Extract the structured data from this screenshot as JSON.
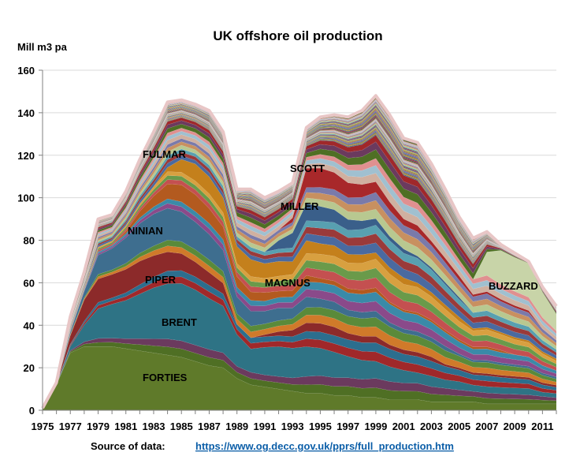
{
  "chart_data": {
    "type": "area",
    "title": "UK offshore oil production",
    "ylabel": "Mill m3 pa",
    "xlabel": "",
    "ylim": [
      0,
      160
    ],
    "yticks": [
      0,
      20,
      40,
      60,
      80,
      100,
      120,
      140,
      160
    ],
    "xlim": [
      1975,
      2012
    ],
    "xticks": [
      1975,
      1977,
      1979,
      1981,
      1983,
      1985,
      1987,
      1989,
      1991,
      1993,
      1995,
      1997,
      1999,
      2001,
      2003,
      2005,
      2007,
      2009,
      2011
    ],
    "grid": true,
    "stacked": true,
    "total": {
      "x": [
        1975,
        1976,
        1977,
        1978,
        1979,
        1980,
        1981,
        1982,
        1983,
        1984,
        1985,
        1986,
        1987,
        1988,
        1989,
        1990,
        1991,
        1992,
        1993,
        1994,
        1995,
        1996,
        1997,
        1998,
        1999,
        2000,
        2001,
        2002,
        2003,
        2004,
        2005,
        2006,
        2007,
        2008,
        2009,
        2010,
        2011,
        2012
      ],
      "values": [
        1,
        13,
        44,
        65,
        90,
        92,
        103,
        118,
        131,
        145,
        146,
        144,
        141,
        131,
        104,
        104,
        100,
        103,
        107,
        133,
        138,
        139,
        138,
        141,
        148,
        139,
        128,
        126,
        116,
        104,
        91,
        81,
        84,
        78,
        74,
        70,
        58,
        49
      ]
    },
    "series": [
      {
        "name": "FORTIES",
        "color": "#5f7a2a",
        "values": [
          1,
          12,
          27,
          30,
          30,
          30,
          29,
          28,
          27,
          26,
          25,
          23,
          21,
          20,
          15,
          12,
          11,
          10,
          9,
          8,
          8,
          7,
          7,
          6,
          6,
          5,
          5,
          5,
          4,
          4,
          4,
          4,
          3,
          3,
          3,
          3,
          3,
          3
        ]
      },
      {
        "name": "BRENT",
        "color": "#2e7385",
        "values": [
          0,
          0,
          2,
          8,
          14,
          16,
          18,
          21,
          24,
          26,
          27,
          26,
          24,
          22,
          15,
          11,
          13,
          14,
          14,
          14,
          13,
          12,
          10,
          9,
          8,
          7,
          6,
          5,
          5,
          4,
          4,
          3,
          3,
          3,
          3,
          3,
          2,
          2
        ]
      },
      {
        "name": "PIPER",
        "color": "#8c2a2a",
        "values": [
          0,
          0,
          4,
          10,
          11,
          11,
          11,
          11,
          10,
          9,
          8,
          7,
          6,
          5,
          0,
          0,
          1,
          2,
          3,
          4,
          4,
          4,
          3,
          3,
          3,
          2,
          2,
          2,
          2,
          1,
          1,
          1,
          1,
          1,
          1,
          1,
          1,
          1
        ]
      },
      {
        "name": "NINIAN",
        "color": "#3e6e8f",
        "values": [
          0,
          0,
          1,
          3,
          9,
          10,
          12,
          14,
          15,
          15,
          14,
          13,
          12,
          10,
          8,
          7,
          6,
          6,
          5,
          5,
          4,
          4,
          3,
          3,
          3,
          2,
          2,
          2,
          2,
          2,
          1,
          1,
          1,
          1,
          1,
          1,
          1,
          1
        ]
      },
      {
        "name": "FULMAR",
        "color": "#b35a1f",
        "values": [
          0,
          0,
          0,
          0,
          0,
          0,
          1,
          3,
          5,
          7,
          8,
          8,
          7,
          6,
          5,
          4,
          4,
          3,
          3,
          3,
          2,
          2,
          2,
          2,
          2,
          1,
          1,
          1,
          1,
          1,
          1,
          1,
          1,
          1,
          0,
          0,
          0,
          0
        ]
      },
      {
        "name": "MAGNUS",
        "color": "#c4801c",
        "values": [
          0,
          0,
          0,
          0,
          0,
          0,
          0,
          0,
          0,
          2,
          6,
          8,
          8,
          7,
          8,
          8,
          7,
          7,
          6,
          6,
          5,
          5,
          4,
          4,
          3,
          3,
          3,
          2,
          2,
          2,
          2,
          1,
          1,
          1,
          1,
          1,
          1,
          1
        ]
      },
      {
        "name": "MILLER",
        "color": "#3a5f8a",
        "values": [
          0,
          0,
          0,
          0,
          0,
          0,
          0,
          0,
          0,
          0,
          0,
          0,
          0,
          0,
          0,
          0,
          0,
          4,
          7,
          8,
          7,
          6,
          5,
          4,
          3,
          2,
          2,
          1,
          1,
          1,
          1,
          0,
          0,
          0,
          0,
          0,
          0,
          0
        ]
      },
      {
        "name": "SCOTT",
        "color": "#a8282a",
        "values": [
          0,
          0,
          0,
          0,
          0,
          0,
          0,
          0,
          0,
          0,
          0,
          0,
          0,
          0,
          0,
          0,
          0,
          0,
          2,
          9,
          9,
          8,
          7,
          6,
          5,
          4,
          3,
          3,
          2,
          2,
          2,
          1,
          1,
          1,
          1,
          1,
          0,
          0
        ]
      },
      {
        "name": "BUZZARD",
        "color": "#c8d4a8",
        "values": [
          0,
          0,
          0,
          0,
          0,
          0,
          0,
          0,
          0,
          0,
          0,
          0,
          0,
          0,
          0,
          0,
          0,
          0,
          0,
          0,
          0,
          0,
          0,
          0,
          0,
          0,
          0,
          0,
          0,
          0,
          0,
          0,
          11,
          16,
          16,
          16,
          12,
          8
        ]
      }
    ],
    "annotations": [
      "FORTIES",
      "BRENT",
      "PIPER",
      "NINIAN",
      "FULMAR",
      "MAGNUS",
      "MILLER",
      "SCOTT",
      "BUZZARD"
    ],
    "source_label": "Source of data:",
    "source_url": "https://www.og.decc.gov.uk/pprs/full_production.htm"
  },
  "colors": {
    "other_fields": [
      "#4f6f24",
      "#6b3a5e",
      "#a0282a",
      "#2c6e8e",
      "#d07a2a",
      "#5a8a3a",
      "#8a4a8a",
      "#3a8aa8",
      "#c45050",
      "#6a9a4a",
      "#d8a040",
      "#4a6aa0",
      "#9a3a3a",
      "#58a0b0",
      "#b8c890",
      "#c89060",
      "#7a7aaa",
      "#d0b0a0",
      "#a0c0d0",
      "#e09090"
    ],
    "outline": "#e8c6c6",
    "grid": "#d9d9d9"
  }
}
